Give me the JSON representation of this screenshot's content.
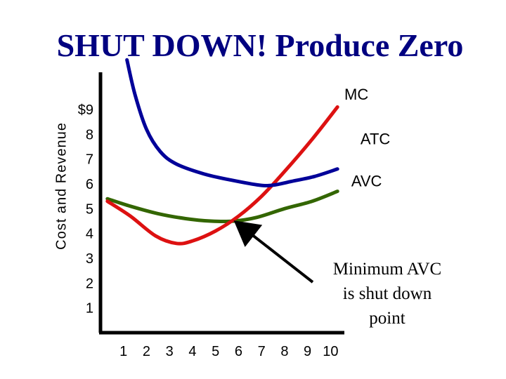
{
  "slide": {
    "title": "SHUT DOWN! Produce Zero"
  },
  "annotation": {
    "lines": [
      "Minimum AVC",
      "is shut down",
      "point"
    ]
  },
  "chart_data": {
    "type": "line",
    "title": "SHUT DOWN! Produce Zero",
    "xlabel": "",
    "ylabel": "Cost and Revenue",
    "xlim": [
      0,
      10.6
    ],
    "ylim": [
      0,
      10.5
    ],
    "x_ticks": [
      "1",
      "2",
      "3",
      "4",
      "5",
      "6",
      "7",
      "8",
      "9",
      "10"
    ],
    "y_ticks": [
      "1",
      "2",
      "3",
      "4",
      "5",
      "6",
      "7",
      "8",
      "$9"
    ],
    "grid": false,
    "series": [
      {
        "name": "MC",
        "color": "#dd1111",
        "x": [
          0.3,
          1.3,
          2.4,
          3.3,
          4.0,
          5.0,
          6.0,
          7.0,
          8.0,
          9.2,
          10.3
        ],
        "y": [
          5.3,
          4.7,
          3.9,
          3.6,
          3.7,
          4.1,
          4.7,
          5.5,
          6.5,
          7.8,
          9.1
        ]
      },
      {
        "name": "ATC",
        "color": "#000099",
        "x": [
          1.15,
          1.5,
          2.0,
          2.6,
          3.3,
          4.5,
          5.7,
          6.9,
          7.5,
          8.3,
          9.3,
          10.3
        ],
        "y": [
          11.0,
          9.6,
          8.2,
          7.3,
          6.8,
          6.4,
          6.15,
          5.95,
          5.95,
          6.1,
          6.3,
          6.6
        ]
      },
      {
        "name": "AVC",
        "color": "#336600",
        "x": [
          0.3,
          1.3,
          2.5,
          3.7,
          4.8,
          5.8,
          6.8,
          8.0,
          9.2,
          10.3
        ],
        "y": [
          5.4,
          5.1,
          4.8,
          4.6,
          4.5,
          4.5,
          4.65,
          5.0,
          5.3,
          5.7
        ]
      }
    ],
    "annotations": [
      {
        "text": "Minimum AVC is shut down point",
        "points_to": {
          "x": 5.8,
          "y": 4.5
        }
      }
    ]
  }
}
